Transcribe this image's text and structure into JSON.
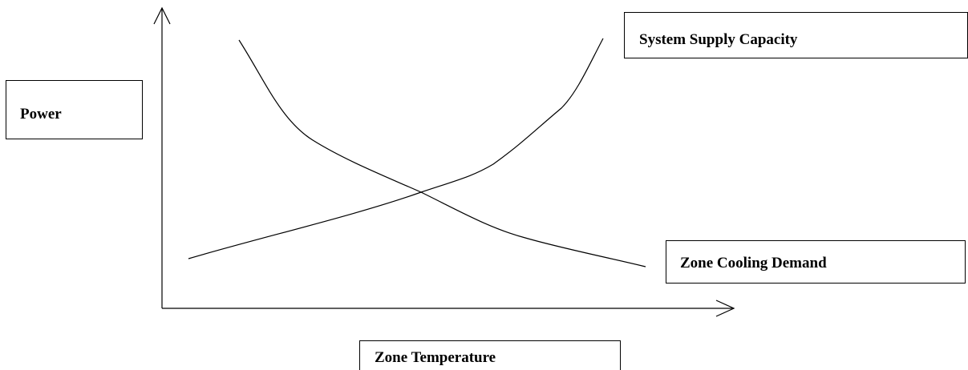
{
  "y_axis_label": "Power",
  "x_axis_label": "Zone Temperature",
  "curves": [
    {
      "label": "System Supply Capacity"
    },
    {
      "label": "Zone Cooling Demand"
    }
  ]
}
